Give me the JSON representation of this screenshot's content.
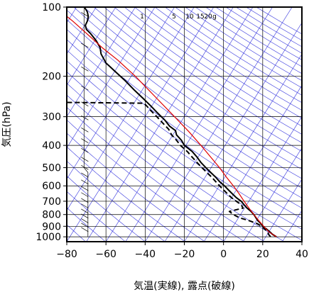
{
  "chart_data": {
    "type": "line",
    "title": "",
    "xlabel": "気温(実線), 露点(破線)",
    "ylabel": "気圧(hPa)",
    "x_axis": {
      "range": [
        -80,
        40
      ],
      "ticks": [
        -80,
        -60,
        -40,
        -20,
        0,
        20,
        40
      ],
      "tick_labels": [
        "−80",
        "−60",
        "−40",
        "−20",
        "0",
        "20",
        "40"
      ]
    },
    "y_axis": {
      "scale": "log",
      "range": [
        1050,
        100
      ],
      "ticks": [
        100,
        200,
        300,
        400,
        500,
        600,
        700,
        800,
        900,
        1000
      ],
      "tick_labels": [
        "100",
        "200",
        "300",
        "400",
        "500",
        "600",
        "700",
        "800",
        "900",
        "1000"
      ]
    },
    "mixing_ratio_labels": [
      "1",
      "5",
      "10",
      "15",
      "20",
      "g"
    ],
    "grid": true,
    "colors": {
      "temperature": "#000000",
      "dewpoint": "#000000",
      "parcel": "#e00000",
      "dry_adiabat": "#3333dd",
      "isotherm": "#3333dd",
      "grid": "#000000"
    },
    "series": [
      {
        "style": "solid",
        "color": "#000000",
        "points": [
          {
            "p": 1000,
            "t": 27.0
          },
          {
            "p": 975,
            "t": 25.0
          },
          {
            "p": 950,
            "t": 23.5
          },
          {
            "p": 925,
            "t": 22.0
          },
          {
            "p": 900,
            "t": 20.0
          },
          {
            "p": 875,
            "t": 19.0
          },
          {
            "p": 850,
            "t": 17.5
          },
          {
            "p": 825,
            "t": 16.5
          },
          {
            "p": 800,
            "t": 15.5
          },
          {
            "p": 775,
            "t": 14.0
          },
          {
            "p": 750,
            "t": 12.0
          },
          {
            "p": 725,
            "t": 10.5
          },
          {
            "p": 700,
            "t": 9.0
          },
          {
            "p": 675,
            "t": 6.5
          },
          {
            "p": 650,
            "t": 4.5
          },
          {
            "p": 625,
            "t": 2.5
          },
          {
            "p": 600,
            "t": 0.5
          },
          {
            "p": 575,
            "t": -2.0
          },
          {
            "p": 550,
            "t": -4.0
          },
          {
            "p": 525,
            "t": -6.5
          },
          {
            "p": 500,
            "t": -9.0
          },
          {
            "p": 475,
            "t": -11.5
          },
          {
            "p": 450,
            "t": -13.5
          },
          {
            "p": 425,
            "t": -16.0
          },
          {
            "p": 400,
            "t": -20.0
          },
          {
            "p": 380,
            "t": -21.5
          },
          {
            "p": 360,
            "t": -24.0
          },
          {
            "p": 345,
            "t": -24.5
          },
          {
            "p": 330,
            "t": -27.5
          },
          {
            "p": 310,
            "t": -30.0
          },
          {
            "p": 290,
            "t": -33.5
          },
          {
            "p": 270,
            "t": -37.0
          },
          {
            "p": 250,
            "t": -41.0
          },
          {
            "p": 230,
            "t": -45.5
          },
          {
            "p": 210,
            "t": -50.0
          },
          {
            "p": 190,
            "t": -55.5
          },
          {
            "p": 175,
            "t": -60.0
          },
          {
            "p": 160,
            "t": -62.5
          },
          {
            "p": 150,
            "t": -63.0
          },
          {
            "p": 140,
            "t": -65.0
          },
          {
            "p": 130,
            "t": -68.0
          },
          {
            "p": 125,
            "t": -70.0
          },
          {
            "p": 120,
            "t": -70.5
          },
          {
            "p": 115,
            "t": -69.5
          },
          {
            "p": 110,
            "t": -69.0
          },
          {
            "p": 105,
            "t": -69.5
          },
          {
            "p": 100,
            "t": -71.0
          }
        ]
      },
      {
        "style": "dashed",
        "color": "#000000",
        "points": [
          {
            "p": 1000,
            "t": 24.0
          },
          {
            "p": 975,
            "t": 23.0
          },
          {
            "p": 950,
            "t": 22.5
          },
          {
            "p": 925,
            "t": 21.0
          },
          {
            "p": 900,
            "t": 19.5
          },
          {
            "p": 875,
            "t": 17.0
          },
          {
            "p": 850,
            "t": 13.0
          },
          {
            "p": 825,
            "t": 8.0
          },
          {
            "p": 800,
            "t": 5.0
          },
          {
            "p": 775,
            "t": 3.0
          },
          {
            "p": 750,
            "t": 10.0
          },
          {
            "p": 725,
            "t": 9.0
          },
          {
            "p": 700,
            "t": 6.5
          },
          {
            "p": 675,
            "t": 4.0
          },
          {
            "p": 650,
            "t": 2.0
          },
          {
            "p": 625,
            "t": 0.0
          },
          {
            "p": 600,
            "t": -2.0
          },
          {
            "p": 575,
            "t": -4.0
          },
          {
            "p": 550,
            "t": -6.0
          },
          {
            "p": 525,
            "t": -8.5
          },
          {
            "p": 500,
            "t": -11.0
          },
          {
            "p": 475,
            "t": -13.5
          },
          {
            "p": 450,
            "t": -16.0
          },
          {
            "p": 425,
            "t": -18.5
          },
          {
            "p": 400,
            "t": -22.0
          },
          {
            "p": 380,
            "t": -24.0
          },
          {
            "p": 360,
            "t": -26.5
          },
          {
            "p": 340,
            "t": -28.0
          },
          {
            "p": 320,
            "t": -31.0
          },
          {
            "p": 300,
            "t": -34.0
          },
          {
            "p": 280,
            "t": -37.5
          },
          {
            "p": 262,
            "t": -40.5
          },
          {
            "p": 260,
            "t": -80.0
          }
        ]
      },
      {
        "style": "solid",
        "color": "#e00000",
        "points": [
          {
            "p": 1000,
            "t": 27.0
          },
          {
            "p": 950,
            "t": 23.0
          },
          {
            "p": 900,
            "t": 20.5
          },
          {
            "p": 850,
            "t": 18.0
          },
          {
            "p": 800,
            "t": 15.5
          },
          {
            "p": 750,
            "t": 13.0
          },
          {
            "p": 700,
            "t": 10.5
          },
          {
            "p": 650,
            "t": 8.0
          },
          {
            "p": 600,
            "t": 5.0
          },
          {
            "p": 550,
            "t": 1.5
          },
          {
            "p": 500,
            "t": -2.0
          },
          {
            "p": 450,
            "t": -6.5
          },
          {
            "p": 400,
            "t": -11.5
          },
          {
            "p": 350,
            "t": -17.5
          },
          {
            "p": 300,
            "t": -25.0
          },
          {
            "p": 250,
            "t": -34.0
          },
          {
            "p": 200,
            "t": -45.0
          },
          {
            "p": 170,
            "t": -54.0
          },
          {
            "p": 150,
            "t": -62.0
          },
          {
            "p": 130,
            "t": -70.0
          },
          {
            "p": 115,
            "t": -77.0
          },
          {
            "p": 108,
            "t": -81.0
          }
        ]
      }
    ]
  }
}
